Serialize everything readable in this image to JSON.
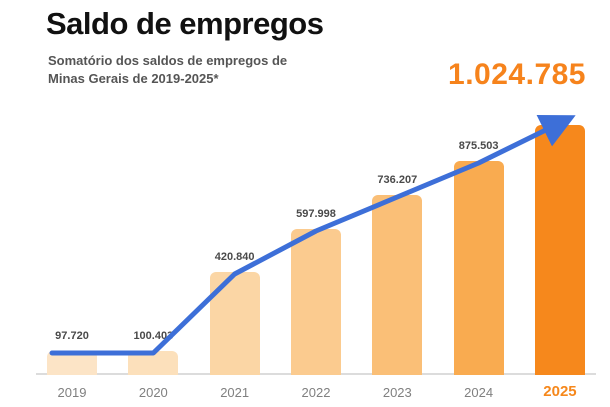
{
  "chart_data": {
    "type": "bar",
    "title": "Saldo de empregos",
    "subtitle": "Somatório dos saldos de empregos de Minas Gerais de 2019-2025*",
    "categories": [
      "2019",
      "2020",
      "2021",
      "2022",
      "2023",
      "2024",
      "2025"
    ],
    "values": [
      97720,
      100403,
      420840,
      597998,
      736207,
      875503,
      1024785
    ],
    "value_labels": [
      "97.720",
      "100.403",
      "420.840",
      "597.998",
      "736.207",
      "875.503",
      "1.024.785"
    ],
    "highlight_label": "1.024.785",
    "xlabel": "",
    "ylabel": "",
    "ylim": [
      0,
      1024785
    ],
    "grid": false,
    "legend": "none",
    "bar_colors": [
      "#fce4c6",
      "#fce0bb",
      "#fbd6a5",
      "#fbcb8f",
      "#fabf77",
      "#f9ab50",
      "#f6881c"
    ],
    "line_color": "#3d6fd8",
    "highlight_color": "#f6831c",
    "axis_label_color": "#808080",
    "axis_highlight_color": "#f6881c",
    "value_label_color": "#4a4a4a"
  }
}
